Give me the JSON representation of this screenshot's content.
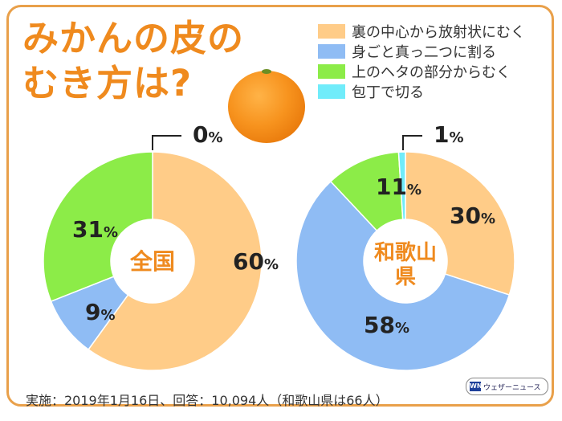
{
  "title_lines": [
    "みかんの皮の",
    "むき方は?"
  ],
  "legend": [
    {
      "label": "裏の中心から放射状にむく",
      "color": "#ffcc88"
    },
    {
      "label": "身ごと真っ二つに割る",
      "color": "#8fbcf4"
    },
    {
      "label": "上のヘタの部分からむく",
      "color": "#8cec48"
    },
    {
      "label": "包丁で切る",
      "color": "#70ecfa"
    }
  ],
  "chart_data": [
    {
      "type": "pie",
      "center_label": "全国",
      "categories": [
        "裏の中心から放射状にむく",
        "身ごと真っ二つに割る",
        "上のヘタの部分からむく",
        "包丁で切る"
      ],
      "values": [
        60,
        9,
        31,
        0
      ],
      "labels": [
        "60%",
        "9%",
        "31%",
        "0%"
      ]
    },
    {
      "type": "pie",
      "center_label": "和歌山県",
      "categories": [
        "裏の中心から放射状にむく",
        "身ごと真っ二つに割る",
        "上のヘタの部分からむく",
        "包丁で切る"
      ],
      "values": [
        30,
        58,
        11,
        1
      ],
      "labels": [
        "30%",
        "58%",
        "11%",
        "1%"
      ]
    }
  ],
  "footer": "実施：2019年1月16日、回答：10,094人（和歌山県は66人）",
  "logo": {
    "mark": "WN",
    "text": "ウェザーニュース"
  },
  "colors": {
    "accent": "#ef8a1e",
    "border": "#e9a04a"
  }
}
